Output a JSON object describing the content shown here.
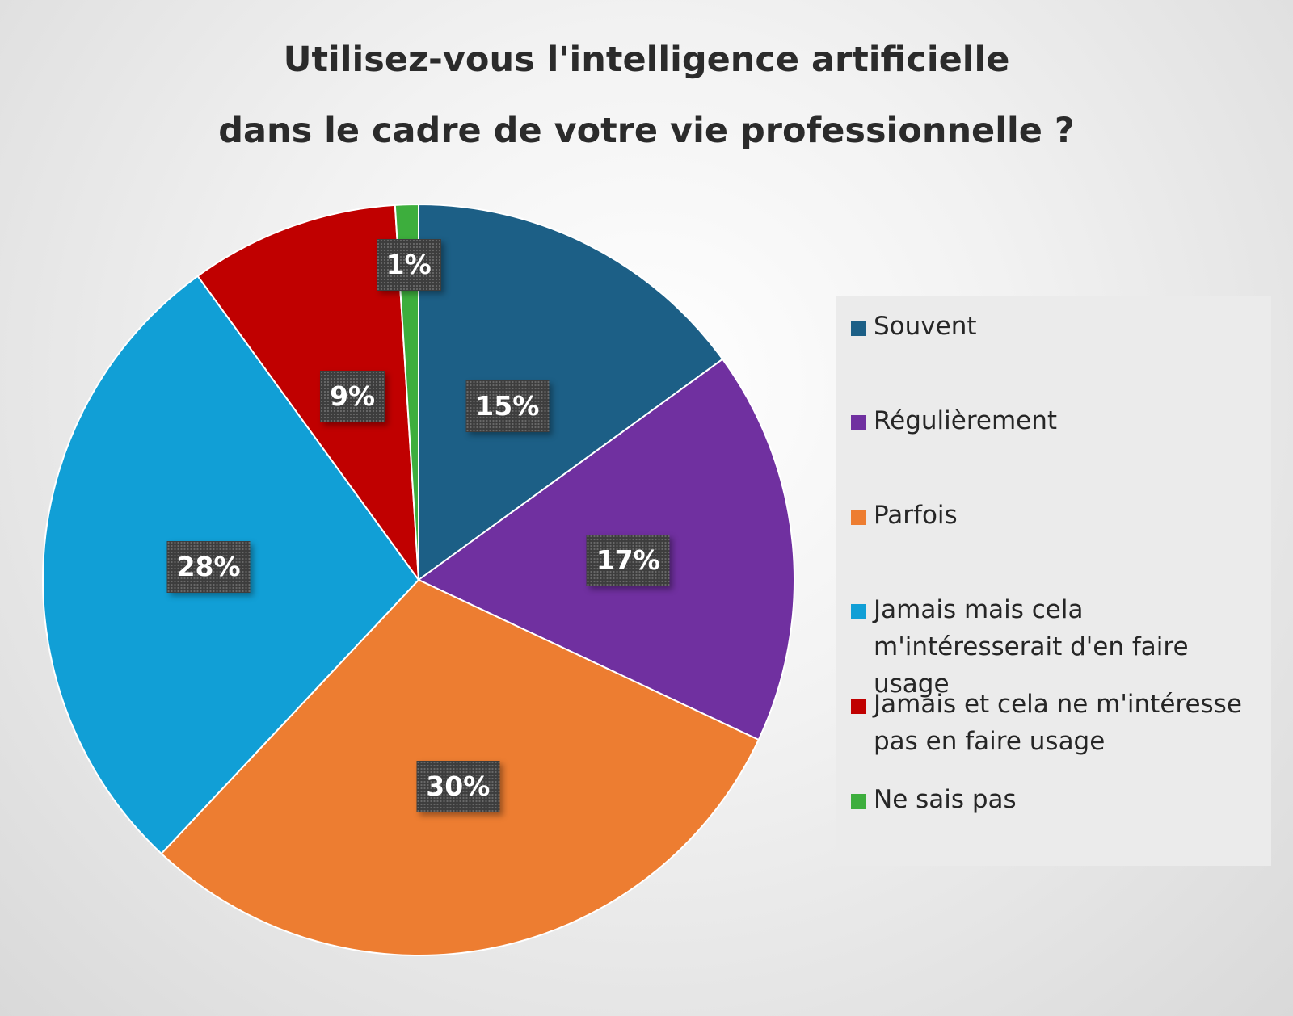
{
  "chart_data": {
    "type": "pie",
    "title": [
      "Utilisez-vous l'intelligence artificielle",
      "dans le cadre de votre vie professionnelle ?"
    ],
    "slices": [
      {
        "label": "Souvent",
        "value": 15,
        "display": "15%",
        "color": "#1c5f86"
      },
      {
        "label": "Régulièrement",
        "value": 17,
        "display": "17%",
        "color": "#7030a0"
      },
      {
        "label": "Parfois",
        "value": 30,
        "display": "30%",
        "color": "#ed7d31"
      },
      {
        "label": "Jamais mais cela m'intéresserait d'en faire usage",
        "value": 28,
        "display": "28%",
        "color": "#119fd6"
      },
      {
        "label": "Jamais et cela ne m'intéresse pas en faire usage",
        "value": 9,
        "display": "9%",
        "color": "#c00000"
      },
      {
        "label": "Ne sais pas",
        "value": 1,
        "display": "1%",
        "color": "#3dae3d"
      }
    ],
    "start": "top, clockwise",
    "legend_position": "right"
  }
}
